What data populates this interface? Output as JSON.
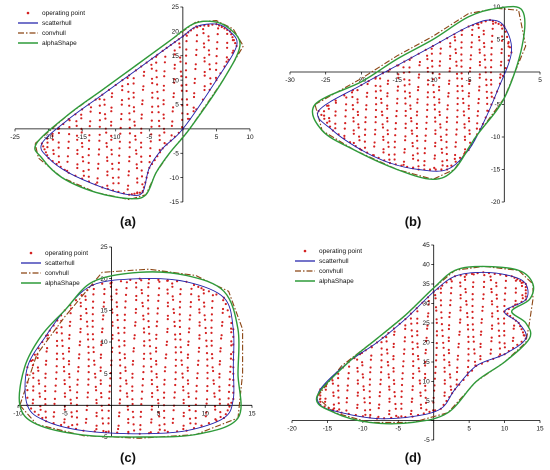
{
  "colors": {
    "operating_point": "#d42020",
    "scatterhull": "#2222aa",
    "convhull": "#8b4513",
    "alphashape": "#2e9b3a",
    "axis": "#000000",
    "tick_text": "#111111"
  },
  "chart_data": [
    {
      "type": "scatter",
      "panel_label": "(a)",
      "xlim": [
        -25,
        10
      ],
      "ylim": [
        -15,
        25
      ],
      "xticks": [
        -25,
        -20,
        -15,
        -10,
        -5,
        0,
        5,
        10
      ],
      "xticklabels": [
        "-25",
        "-20",
        "-15",
        "-10",
        "-5",
        "",
        "5",
        "10"
      ],
      "yticks": [
        -15,
        -10,
        -5,
        0,
        5,
        10,
        15,
        20,
        25
      ],
      "yticklabels": [
        "-15",
        "-10",
        "-5",
        "",
        "5",
        "10",
        "15",
        "20",
        "25"
      ],
      "legend": {
        "position": "top-left",
        "items": [
          "operating point",
          "scatterhull",
          "convhull",
          "alphaShape"
        ]
      },
      "region": [
        [
          -21,
          -3
        ],
        [
          -17,
          2
        ],
        [
          -12,
          7
        ],
        [
          -7,
          12
        ],
        [
          -3,
          16
        ],
        [
          0,
          19
        ],
        [
          2,
          21
        ],
        [
          5,
          21.5
        ],
        [
          7,
          20
        ],
        [
          8,
          17
        ],
        [
          5,
          10
        ],
        [
          0,
          0
        ],
        [
          -3,
          -4
        ],
        [
          -5,
          -8
        ],
        [
          -6,
          -13
        ],
        [
          -8,
          -13.5
        ],
        [
          -12,
          -12
        ],
        [
          -17,
          -9
        ],
        [
          -20,
          -6
        ]
      ],
      "hull": [
        [
          -22,
          -3
        ],
        [
          -17,
          3
        ],
        [
          -12,
          8
        ],
        [
          -7,
          13
        ],
        [
          -2,
          18
        ],
        [
          2,
          22
        ],
        [
          5,
          22.2
        ],
        [
          7.5,
          20.5
        ],
        [
          9,
          17
        ],
        [
          6,
          10
        ],
        [
          1,
          0
        ],
        [
          -2,
          -5
        ],
        [
          -4,
          -9
        ],
        [
          -5.5,
          -13.5
        ],
        [
          -8,
          -14.5
        ],
        [
          -13,
          -13
        ],
        [
          -18,
          -10
        ],
        [
          -21.5,
          -6
        ]
      ],
      "alpha": [
        [
          -21.8,
          -3
        ],
        [
          -17,
          3
        ],
        [
          -12,
          8
        ],
        [
          -7,
          13
        ],
        [
          -2,
          18
        ],
        [
          1.5,
          21.5
        ],
        [
          4.5,
          22
        ],
        [
          7,
          20.5
        ],
        [
          8.5,
          17
        ],
        [
          6,
          10
        ],
        [
          1,
          0
        ],
        [
          -2,
          -5
        ],
        [
          -4,
          -9
        ],
        [
          -5.5,
          -13.5
        ],
        [
          -8,
          -14.3
        ],
        [
          -13,
          -13
        ],
        [
          -18,
          -10
        ],
        [
          -21,
          -6
        ]
      ]
    },
    {
      "type": "scatter",
      "panel_label": "(b)",
      "xlim": [
        -30,
        5
      ],
      "ylim": [
        -20,
        10
      ],
      "xticks": [
        -30,
        -25,
        -20,
        -15,
        -10,
        -5,
        0,
        5
      ],
      "xticklabels": [
        "-30",
        "-25",
        "-20",
        "-15",
        "-10",
        "-5",
        "",
        "5"
      ],
      "yticks": [
        -20,
        -15,
        -10,
        -5,
        0,
        5,
        10
      ],
      "yticklabels": [
        "-20",
        "-15",
        "-10",
        "-5",
        "",
        "5",
        "10"
      ],
      "legend": null,
      "region": [
        [
          -26,
          -6
        ],
        [
          -20,
          -2
        ],
        [
          -15,
          1
        ],
        [
          -10,
          4
        ],
        [
          -5,
          7
        ],
        [
          -2,
          8
        ],
        [
          0,
          7
        ],
        [
          1,
          3
        ],
        [
          -1,
          -3
        ],
        [
          -3,
          -8
        ],
        [
          -5,
          -12
        ],
        [
          -8,
          -15
        ],
        [
          -12,
          -15
        ],
        [
          -16,
          -14
        ],
        [
          -20,
          -12
        ],
        [
          -24,
          -9
        ]
      ],
      "hull": [
        [
          -26.5,
          -5
        ],
        [
          -20,
          -1
        ],
        [
          -15,
          2.5
        ],
        [
          -10,
          5.5
        ],
        [
          -5,
          9
        ],
        [
          -1,
          9.8
        ],
        [
          2,
          9.5
        ],
        [
          3,
          4
        ],
        [
          0,
          -4
        ],
        [
          -4,
          -10
        ],
        [
          -7,
          -15
        ],
        [
          -10,
          -16.5
        ],
        [
          -15,
          -15
        ],
        [
          -21,
          -12
        ],
        [
          -25.5,
          -9
        ]
      ],
      "alpha": [
        [
          -26.5,
          -5
        ],
        [
          -20,
          -1.5
        ],
        [
          -15,
          2
        ],
        [
          -10,
          5
        ],
        [
          -5,
          8.5
        ],
        [
          -1,
          9.8
        ],
        [
          2.5,
          9.5
        ],
        [
          2.5,
          4
        ],
        [
          0,
          -4
        ],
        [
          -4,
          -10
        ],
        [
          -7,
          -15
        ],
        [
          -10,
          -16.5
        ],
        [
          -15,
          -15
        ],
        [
          -21,
          -12
        ],
        [
          -25.5,
          -9
        ]
      ]
    },
    {
      "type": "scatter",
      "panel_label": "(c)",
      "xlim": [
        -10,
        15
      ],
      "ylim": [
        -5,
        25
      ],
      "xticks": [
        -10,
        -5,
        0,
        5,
        10,
        15
      ],
      "xticklabels": [
        "-10",
        "-5",
        "",
        "5",
        "10",
        "15"
      ],
      "yticks": [
        -5,
        0,
        5,
        10,
        15,
        20,
        25
      ],
      "yticklabels": [
        "-5",
        "",
        "5",
        "10",
        "15",
        "20",
        "25"
      ],
      "legend": {
        "position": "top-left",
        "items": [
          "operating point",
          "scatterhull",
          "convhull",
          "alphaShape"
        ]
      },
      "region": [
        [
          -9,
          0
        ],
        [
          -9,
          6
        ],
        [
          -7,
          11
        ],
        [
          -5,
          15
        ],
        [
          -2,
          19
        ],
        [
          3,
          20
        ],
        [
          8,
          19.5
        ],
        [
          12,
          17
        ],
        [
          13,
          12
        ],
        [
          13,
          6
        ],
        [
          13,
          1
        ],
        [
          12,
          -2
        ],
        [
          8,
          -4
        ],
        [
          3,
          -4.5
        ],
        [
          -3,
          -4
        ],
        [
          -7,
          -2.5
        ]
      ],
      "hull": [
        [
          -9.8,
          0
        ],
        [
          -8,
          8
        ],
        [
          -5,
          14
        ],
        [
          -1,
          21
        ],
        [
          4,
          21.5
        ],
        [
          9,
          20.5
        ],
        [
          12.5,
          18
        ],
        [
          14,
          12
        ],
        [
          14,
          5
        ],
        [
          13.5,
          -2
        ],
        [
          9,
          -4.6
        ],
        [
          3,
          -5.2
        ],
        [
          -3,
          -4.8
        ],
        [
          -8,
          -3
        ]
      ],
      "alpha": [
        [
          -9.8,
          0
        ],
        [
          -9.3,
          6
        ],
        [
          -7.5,
          11
        ],
        [
          -5,
          15
        ],
        [
          -2,
          19.5
        ],
        [
          3,
          21
        ],
        [
          8,
          20.5
        ],
        [
          12,
          18
        ],
        [
          13.5,
          12
        ],
        [
          13.5,
          5
        ],
        [
          13.5,
          -2
        ],
        [
          9,
          -4.6
        ],
        [
          3,
          -5
        ],
        [
          -3,
          -4.7
        ],
        [
          -8,
          -3
        ]
      ]
    },
    {
      "type": "scatter",
      "panel_label": "(d)",
      "xlim": [
        -20,
        15
      ],
      "ylim": [
        -5,
        45
      ],
      "xticks": [
        -20,
        -15,
        -10,
        -5,
        0,
        5,
        10,
        15
      ],
      "xticklabels": [
        "-20",
        "-15",
        "-10",
        "-5",
        "",
        "5",
        "10",
        "15"
      ],
      "yticks": [
        -5,
        0,
        5,
        10,
        15,
        20,
        25,
        30,
        35,
        40,
        45
      ],
      "yticklabels": [
        "-5",
        "",
        "5",
        "10",
        "15",
        "20",
        "25",
        "30",
        "35",
        "40",
        "45"
      ],
      "legend": {
        "position": "top-left",
        "items": [
          "operating point",
          "scatterhull",
          "convhull",
          "alphaShape"
        ]
      },
      "region": [
        [
          -16,
          8
        ],
        [
          -12,
          15
        ],
        [
          -8,
          20
        ],
        [
          -4,
          26
        ],
        [
          0,
          33
        ],
        [
          3,
          37
        ],
        [
          7,
          38
        ],
        [
          11,
          37
        ],
        [
          13,
          35
        ],
        [
          13,
          31
        ],
        [
          10,
          28
        ],
        [
          12,
          25
        ],
        [
          13,
          21
        ],
        [
          10,
          17
        ],
        [
          6,
          14
        ],
        [
          3,
          8
        ],
        [
          1,
          3
        ],
        [
          -3,
          1
        ],
        [
          -8,
          0.5
        ],
        [
          -13,
          2
        ],
        [
          -16,
          4
        ]
      ],
      "hull": [
        [
          -16.5,
          6
        ],
        [
          -13,
          14
        ],
        [
          -8,
          21
        ],
        [
          -4,
          27
        ],
        [
          0,
          34
        ],
        [
          3,
          38.5
        ],
        [
          7,
          39.5
        ],
        [
          12,
          38.5
        ],
        [
          14,
          35
        ],
        [
          14,
          31
        ],
        [
          13.5,
          25
        ],
        [
          13,
          20
        ],
        [
          10,
          15
        ],
        [
          6,
          10
        ],
        [
          2,
          2
        ],
        [
          -3,
          -0.5
        ],
        [
          -9,
          -0.5
        ],
        [
          -14,
          2
        ]
      ],
      "alpha": [
        [
          -16.5,
          6
        ],
        [
          -12,
          15
        ],
        [
          -8,
          21
        ],
        [
          -4,
          27
        ],
        [
          0,
          34
        ],
        [
          3,
          38.5
        ],
        [
          7,
          39.5
        ],
        [
          12,
          38.5
        ],
        [
          14,
          35
        ],
        [
          13.5,
          31
        ],
        [
          11,
          28
        ],
        [
          13,
          25
        ],
        [
          13.5,
          21
        ],
        [
          10,
          15
        ],
        [
          6,
          10
        ],
        [
          2,
          2
        ],
        [
          -3,
          -0.5
        ],
        [
          -9,
          -0.5
        ],
        [
          -14,
          2
        ]
      ]
    }
  ]
}
